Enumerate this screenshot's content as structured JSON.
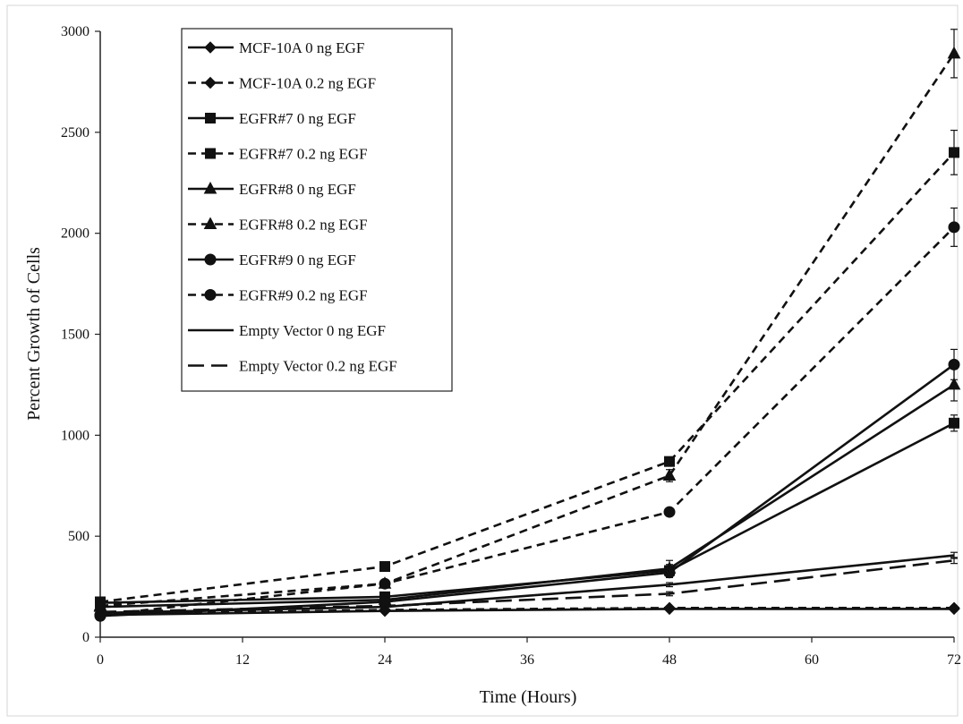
{
  "chart_data": {
    "type": "line",
    "title": "",
    "xlabel": "Time (Hours)",
    "ylabel": "Percent Growth of Cells",
    "xlim": [
      0,
      72
    ],
    "ylim": [
      0,
      3000
    ],
    "xticks": [
      0,
      12,
      24,
      36,
      48,
      60,
      72
    ],
    "yticks": [
      0,
      500,
      1000,
      1500,
      2000,
      2500,
      3000
    ],
    "x": [
      0,
      24,
      48,
      72
    ],
    "grid": false,
    "legend_position": "top-left",
    "series": [
      {
        "name": "MCF-10A 0 ng EGF",
        "marker": "diamond",
        "dash": "solid",
        "values": [
          110,
          130,
          140,
          140
        ],
        "errors": [
          5,
          8,
          8,
          10
        ]
      },
      {
        "name": "MCF-10A 0.2 ng EGF",
        "marker": "diamond",
        "dash": "dashed",
        "values": [
          115,
          135,
          145,
          145
        ],
        "errors": [
          5,
          8,
          8,
          10
        ]
      },
      {
        "name": "EGFR#7 0 ng EGF",
        "marker": "square",
        "dash": "solid",
        "values": [
          170,
          200,
          330,
          1060
        ],
        "errors": [
          10,
          15,
          30,
          40
        ]
      },
      {
        "name": "EGFR#7 0.2 ng EGF",
        "marker": "square",
        "dash": "dashed",
        "values": [
          175,
          350,
          870,
          2400
        ],
        "errors": [
          10,
          15,
          20,
          110
        ]
      },
      {
        "name": "EGFR#8 0 ng EGF",
        "marker": "triangle",
        "dash": "solid",
        "values": [
          150,
          185,
          340,
          1250
        ],
        "errors": [
          10,
          15,
          40,
          80
        ]
      },
      {
        "name": "EGFR#8 0.2 ng EGF",
        "marker": "triangle",
        "dash": "dashed",
        "values": [
          155,
          265,
          800,
          2890
        ],
        "errors": [
          10,
          15,
          30,
          120
        ]
      },
      {
        "name": "EGFR#9 0 ng EGF",
        "marker": "circle",
        "dash": "solid",
        "values": [
          105,
          175,
          320,
          1350
        ],
        "errors": [
          5,
          10,
          25,
          75
        ]
      },
      {
        "name": "EGFR#9 0.2 ng EGF",
        "marker": "circle",
        "dash": "dashed",
        "values": [
          110,
          265,
          620,
          2030
        ],
        "errors": [
          5,
          10,
          15,
          95
        ]
      },
      {
        "name": "Empty Vector 0 ng EGF",
        "marker": "none",
        "dash": "solid",
        "values": [
          120,
          150,
          260,
          405
        ],
        "errors": [
          5,
          8,
          10,
          15
        ]
      },
      {
        "name": "Empty Vector 0.2 ng EGF",
        "marker": "none",
        "dash": "longdash",
        "values": [
          125,
          155,
          215,
          380
        ],
        "errors": [
          5,
          8,
          10,
          15
        ]
      }
    ]
  }
}
